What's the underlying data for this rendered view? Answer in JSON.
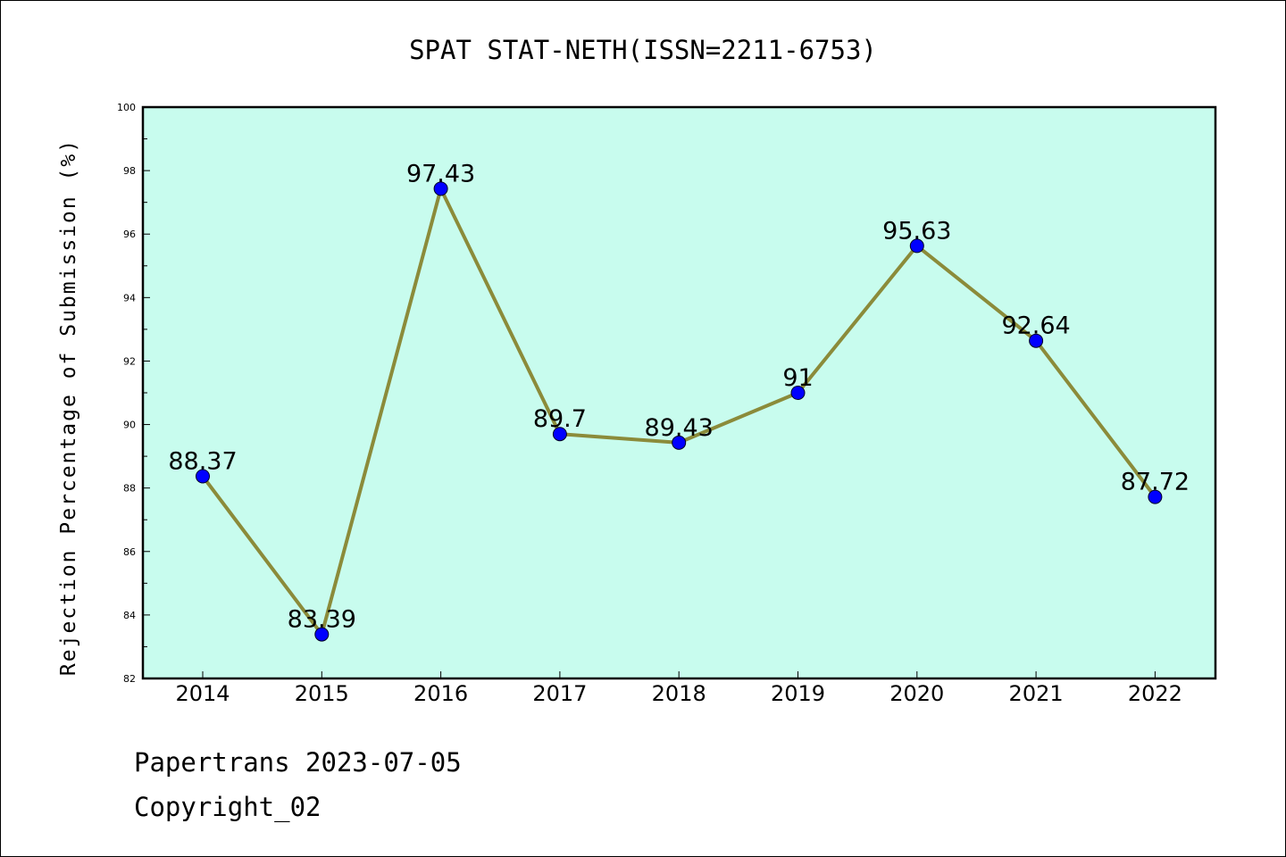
{
  "chart_data": {
    "type": "line",
    "title": "SPAT STAT-NETH(ISSN=2211-6753)",
    "xlabel": "",
    "ylabel": "Rejection Percentage of Submission (%)",
    "categories": [
      "2014",
      "2015",
      "2016",
      "2017",
      "2018",
      "2019",
      "2020",
      "2021",
      "2022"
    ],
    "values": [
      88.37,
      83.39,
      97.43,
      89.7,
      89.43,
      91,
      95.63,
      92.64,
      87.72
    ],
    "data_labels": [
      "88.37",
      "83.39",
      "97.43",
      "89.7",
      "89.43",
      "91",
      "95.63",
      "92.64",
      "87.72"
    ],
    "ylim": [
      82,
      100
    ],
    "yticks": [
      "82",
      "84",
      "86",
      "88",
      "90",
      "92",
      "94",
      "96",
      "98",
      "100"
    ],
    "grid": false,
    "colors": {
      "plot_background": "#c8fcee",
      "line": "#8b8b3a",
      "marker": "#0000ff"
    }
  },
  "footer": {
    "line1": "Papertrans 2023-07-05",
    "line2": "Copyright_02"
  }
}
